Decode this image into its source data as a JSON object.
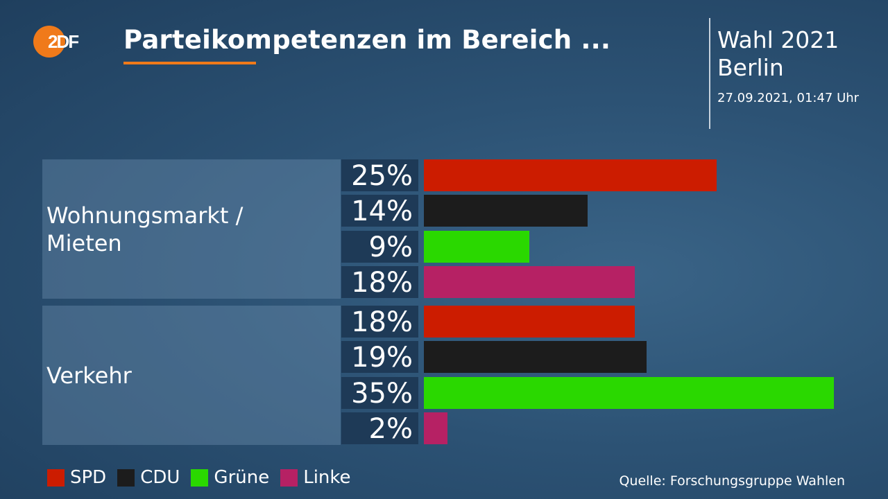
{
  "header": {
    "logo_text": "2DF",
    "title": "Parteikompetenzen im Bereich ...",
    "election_line1": "Wahl 2021",
    "election_line2": "Berlin",
    "timestamp": "27.09.2021, 01:47 Uhr"
  },
  "colors": {
    "accent": "#f07a1a",
    "SPD": "#cc1c00",
    "CDU": "#1c1c1c",
    "Grüne": "#2ad800",
    "Linke": "#b62164"
  },
  "chart_data": {
    "type": "bar",
    "orientation": "horizontal",
    "xlim": [
      0,
      35
    ],
    "groups": [
      {
        "category": "Wohnungsmarkt /\nMieten",
        "values": [
          {
            "party": "SPD",
            "value": 25,
            "label": "25%"
          },
          {
            "party": "CDU",
            "value": 14,
            "label": "14%"
          },
          {
            "party": "Grüne",
            "value": 9,
            "label": "9%"
          },
          {
            "party": "Linke",
            "value": 18,
            "label": "18%"
          }
        ]
      },
      {
        "category": "Verkehr",
        "values": [
          {
            "party": "SPD",
            "value": 18,
            "label": "18%"
          },
          {
            "party": "CDU",
            "value": 19,
            "label": "19%"
          },
          {
            "party": "Grüne",
            "value": 35,
            "label": "35%"
          },
          {
            "party": "Linke",
            "value": 2,
            "label": "2%"
          }
        ]
      }
    ],
    "legend": [
      "SPD",
      "CDU",
      "Grüne",
      "Linke"
    ],
    "legend_position": "bottom-left"
  },
  "footer": {
    "source": "Quelle: Forschungsgruppe Wahlen"
  }
}
